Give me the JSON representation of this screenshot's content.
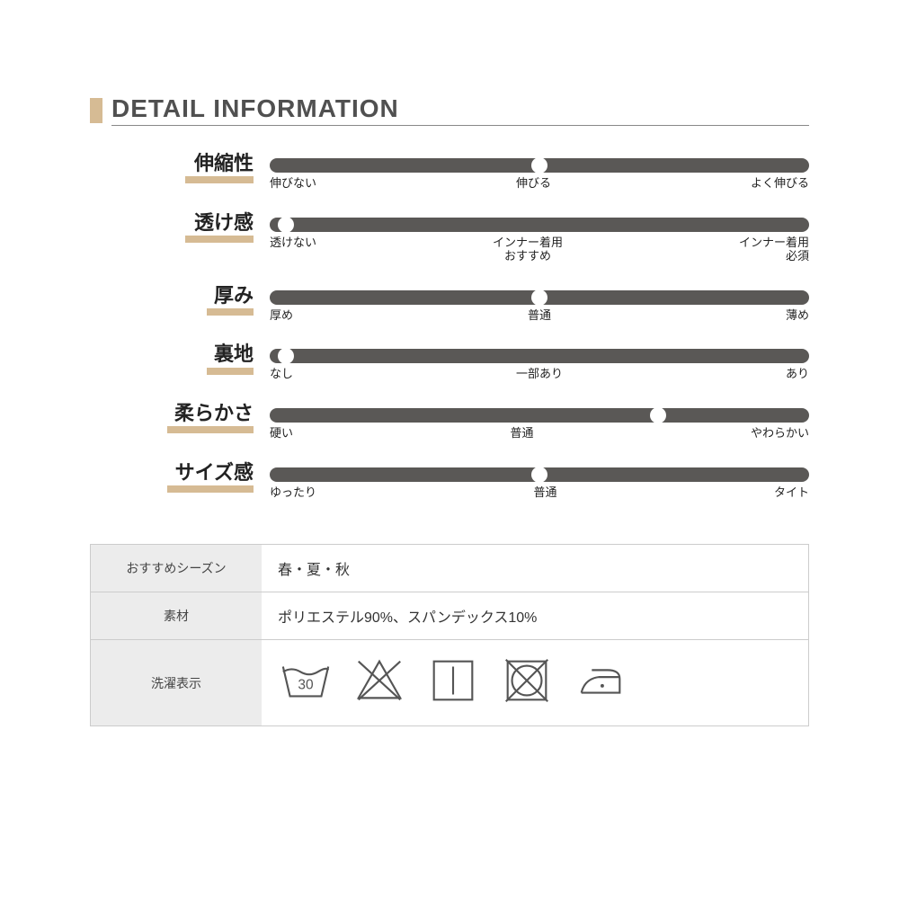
{
  "colors": {
    "accent": "#d6bb94",
    "track": "#5a5856",
    "tableHeader": "#ececec",
    "iconStroke": "#555555",
    "background": "#ffffff"
  },
  "header": {
    "title": "DETAIL INFORMATION"
  },
  "sliders": [
    {
      "label": "伸縮性",
      "underlineWidth": 76,
      "value": 50,
      "scale": [
        "伸びない",
        "伸びる",
        "よく伸びる"
      ]
    },
    {
      "label": "透け感",
      "underlineWidth": 76,
      "value": 3,
      "scale": [
        "透けない",
        "インナー着用\nおすすめ",
        "インナー着用\n必須"
      ]
    },
    {
      "label": "厚み",
      "underlineWidth": 52,
      "value": 50,
      "scale": [
        "厚め",
        "普通",
        "薄め"
      ]
    },
    {
      "label": "裏地",
      "underlineWidth": 52,
      "value": 3,
      "scale": [
        "なし",
        "一部あり",
        "あり"
      ]
    },
    {
      "label": "柔らかさ",
      "underlineWidth": 96,
      "value": 72,
      "scale": [
        "硬い",
        "普通",
        "やわらかい"
      ]
    },
    {
      "label": "サイズ感",
      "underlineWidth": 96,
      "value": 50,
      "scale": [
        "ゆったり",
        "普通",
        "タイト"
      ]
    }
  ],
  "infoTable": {
    "rows": [
      {
        "label": "おすすめシーズン",
        "value": "春・夏・秋"
      },
      {
        "label": "素材",
        "value": "ポリエステル90%、スパンデックス10%"
      },
      {
        "label": "洗濯表示",
        "icons": [
          "wash-30",
          "no-bleach",
          "tumble-low",
          "no-dryclean",
          "iron"
        ]
      }
    ]
  }
}
